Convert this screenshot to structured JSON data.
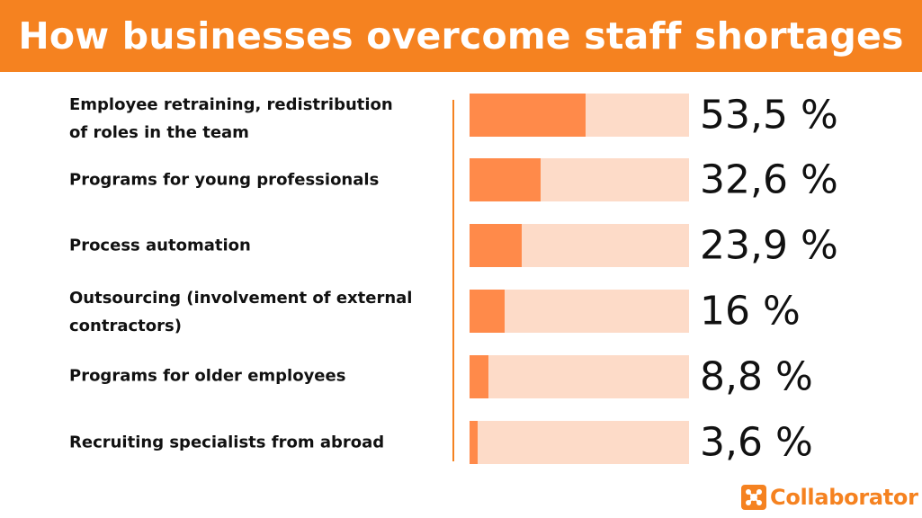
{
  "header": {
    "title": "How businesses overcome staff shortages"
  },
  "chart_data": {
    "type": "bar",
    "orientation": "horizontal",
    "title": "How businesses overcome staff shortages",
    "categories": [
      "Employee retraining, redistribution of roles in the team",
      "Programs for young professionals",
      "Process automation",
      "Outsourcing (involvement of external contractors)",
      "Programs for older employees",
      "Recruiting specialists from abroad"
    ],
    "category_lines": [
      [
        "Employee retraining, redistribution",
        "of roles in the team"
      ],
      [
        "Programs for young professionals"
      ],
      [
        "Process automation"
      ],
      [
        "Outsourcing (involvement of external",
        "contractors)"
      ],
      [
        "Programs for older employees"
      ],
      [
        "Recruiting specialists from abroad"
      ]
    ],
    "values": [
      53.5,
      32.6,
      23.9,
      16,
      8.8,
      3.6
    ],
    "value_labels": [
      "53,5 %",
      "32,6 %",
      "23,9 %",
      "16 %",
      "8,8 %",
      "3,6 %"
    ],
    "xlim": [
      0,
      100
    ],
    "unit": "%",
    "grid": false,
    "colors": {
      "fill": "#ff8a4a",
      "track": "#fddbc8",
      "accent": "#f58220"
    }
  },
  "logo": {
    "text": "Collaborator",
    "icon": "connected-nodes-icon"
  }
}
